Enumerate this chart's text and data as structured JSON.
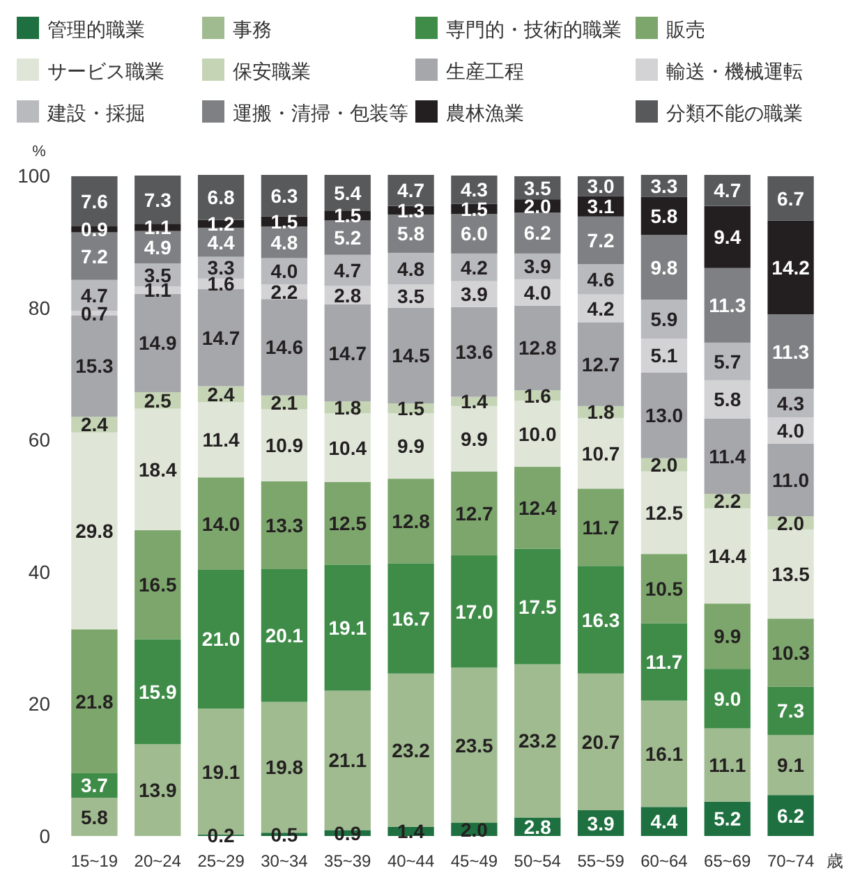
{
  "chart_data": {
    "type": "bar",
    "stacked": true,
    "legend": "top",
    "grid": false,
    "ylabel": "%",
    "xlabel": "歳",
    "categories": [
      "15~19",
      "20~24",
      "25~29",
      "30~34",
      "35~39",
      "40~44",
      "45~49",
      "50~54",
      "55~59",
      "60~64",
      "65~69",
      "70~74"
    ],
    "ylim": [
      0,
      100
    ],
    "yticks": [
      0,
      20,
      40,
      60,
      80,
      100
    ],
    "series": [
      {
        "name": "管理的職業",
        "color": "#1e7040",
        "values": [
          null,
          null,
          0.2,
          0.5,
          0.9,
          1.4,
          2.0,
          2.8,
          3.9,
          4.4,
          5.2,
          6.2
        ],
        "value_labels": [
          null,
          null,
          "0.2",
          "0.5",
          "0.9",
          "1.4",
          "2.0",
          "2.8",
          "3.9",
          "4.4",
          "5.2",
          "6.2"
        ]
      },
      {
        "name": "事務",
        "color": "#9fbb8f",
        "values": [
          5.8,
          13.9,
          19.1,
          19.8,
          21.1,
          23.2,
          23.5,
          23.2,
          20.7,
          16.1,
          11.1,
          9.1
        ],
        "value_labels": [
          "5.8",
          "13.9",
          "19.1",
          "19.8",
          "21.1",
          "23.2",
          "23.5",
          "23.2",
          "20.7",
          "16.1",
          "11.1",
          "9.1"
        ]
      },
      {
        "name": "専門的・技術的職業",
        "color": "#3f8c48",
        "values": [
          3.7,
          15.9,
          21.0,
          20.1,
          19.1,
          16.7,
          17.0,
          17.5,
          16.3,
          11.7,
          9.0,
          7.3
        ],
        "value_labels": [
          "3.7",
          "15.9",
          "21.0",
          "20.1",
          "19.1",
          "16.7",
          "17.0",
          "17.5",
          "16.3",
          "11.7",
          "9.0",
          "7.3"
        ]
      },
      {
        "name": "販売",
        "color": "#7ca66c",
        "values": [
          21.8,
          16.5,
          14.0,
          13.3,
          12.5,
          12.8,
          12.7,
          12.4,
          11.7,
          10.5,
          9.9,
          10.3
        ],
        "value_labels": [
          "21.8",
          "16.5",
          "14.0",
          "13.3",
          "12.5",
          "12.8",
          "12.7",
          "12.4",
          "11.7",
          "10.5",
          "9.9",
          "10.3"
        ]
      },
      {
        "name": "サービス職業",
        "color": "#dfe6d7",
        "values": [
          29.8,
          18.4,
          11.4,
          10.9,
          10.4,
          9.9,
          9.9,
          10.0,
          10.7,
          12.5,
          14.4,
          13.5
        ],
        "value_labels": [
          "29.8",
          "18.4",
          "11.4",
          "10.9",
          "10.4",
          "9.9",
          "9.9",
          "10.0",
          "10.7",
          "12.5",
          "14.4",
          "13.5"
        ]
      },
      {
        "name": "保安職業",
        "color": "#c4d4b5",
        "values": [
          2.4,
          2.5,
          2.4,
          2.1,
          1.8,
          1.5,
          1.4,
          1.6,
          1.8,
          2.0,
          2.2,
          2.0
        ],
        "value_labels": [
          "2.4",
          "2.5",
          "2.4",
          "2.1",
          "1.8",
          "1.5",
          "1.4",
          "1.6",
          "1.8",
          "2.0",
          "2.2",
          "2.0"
        ]
      },
      {
        "name": "生産工程",
        "color": "#a6a7ab",
        "values": [
          15.3,
          14.9,
          14.7,
          14.6,
          14.7,
          14.5,
          13.6,
          12.8,
          12.7,
          13.0,
          11.4,
          11.0
        ],
        "value_labels": [
          "15.3",
          "14.9",
          "14.7",
          "14.6",
          "14.7",
          "14.5",
          "13.6",
          "12.8",
          "12.7",
          "13.0",
          "11.4",
          "11.0"
        ]
      },
      {
        "name": "輸送・機械運転",
        "color": "#d3d3d5",
        "values": [
          0.7,
          1.1,
          1.6,
          2.2,
          2.8,
          3.5,
          3.9,
          4.0,
          4.2,
          5.1,
          5.8,
          4.0
        ],
        "value_labels": [
          "0.7",
          "1.1",
          "1.6",
          "2.2",
          "2.8",
          "3.5",
          "3.9",
          "4.0",
          "4.2",
          "5.1",
          "5.8",
          "4.0"
        ]
      },
      {
        "name": "建設・採掘",
        "color": "#b9babe",
        "values": [
          4.7,
          3.5,
          3.3,
          4.0,
          4.7,
          4.8,
          4.2,
          3.9,
          4.6,
          5.9,
          5.7,
          4.3
        ],
        "value_labels": [
          "4.7",
          "3.5",
          "3.3",
          "4.0",
          "4.7",
          "4.8",
          "4.2",
          "3.9",
          "4.6",
          "5.9",
          "5.7",
          "4.3"
        ]
      },
      {
        "name": "運搬・清掃・包装等",
        "color": "#7f8083",
        "values": [
          7.2,
          4.9,
          4.4,
          4.8,
          5.2,
          5.8,
          6.0,
          6.2,
          7.2,
          9.8,
          11.3,
          11.3
        ],
        "value_labels": [
          "7.2",
          "4.9",
          "4.4",
          "4.8",
          "5.2",
          "5.8",
          "6.0",
          "6.2",
          "7.2",
          "9.8",
          "11.3",
          "11.3"
        ]
      },
      {
        "name": "農林漁業",
        "color": "#231f20",
        "values": [
          0.9,
          1.1,
          1.2,
          1.5,
          1.5,
          1.3,
          1.5,
          2.0,
          3.1,
          5.8,
          9.4,
          14.2
        ],
        "value_labels": [
          "0.9",
          "1.1",
          "1.2",
          "1.5",
          "1.5",
          "1.3",
          "1.5",
          "2.0",
          "3.1",
          "5.8",
          "9.4",
          "14.2"
        ]
      },
      {
        "name": "分類不能の職業",
        "color": "#58595b",
        "values": [
          7.6,
          7.3,
          6.8,
          6.3,
          5.4,
          4.7,
          4.3,
          3.5,
          3.0,
          3.3,
          4.7,
          6.7
        ],
        "value_labels": [
          "7.6",
          "7.3",
          "6.8",
          "6.3",
          "5.4",
          "4.7",
          "4.3",
          "3.5",
          "3.0",
          "3.3",
          "4.7",
          "6.7"
        ]
      }
    ]
  }
}
